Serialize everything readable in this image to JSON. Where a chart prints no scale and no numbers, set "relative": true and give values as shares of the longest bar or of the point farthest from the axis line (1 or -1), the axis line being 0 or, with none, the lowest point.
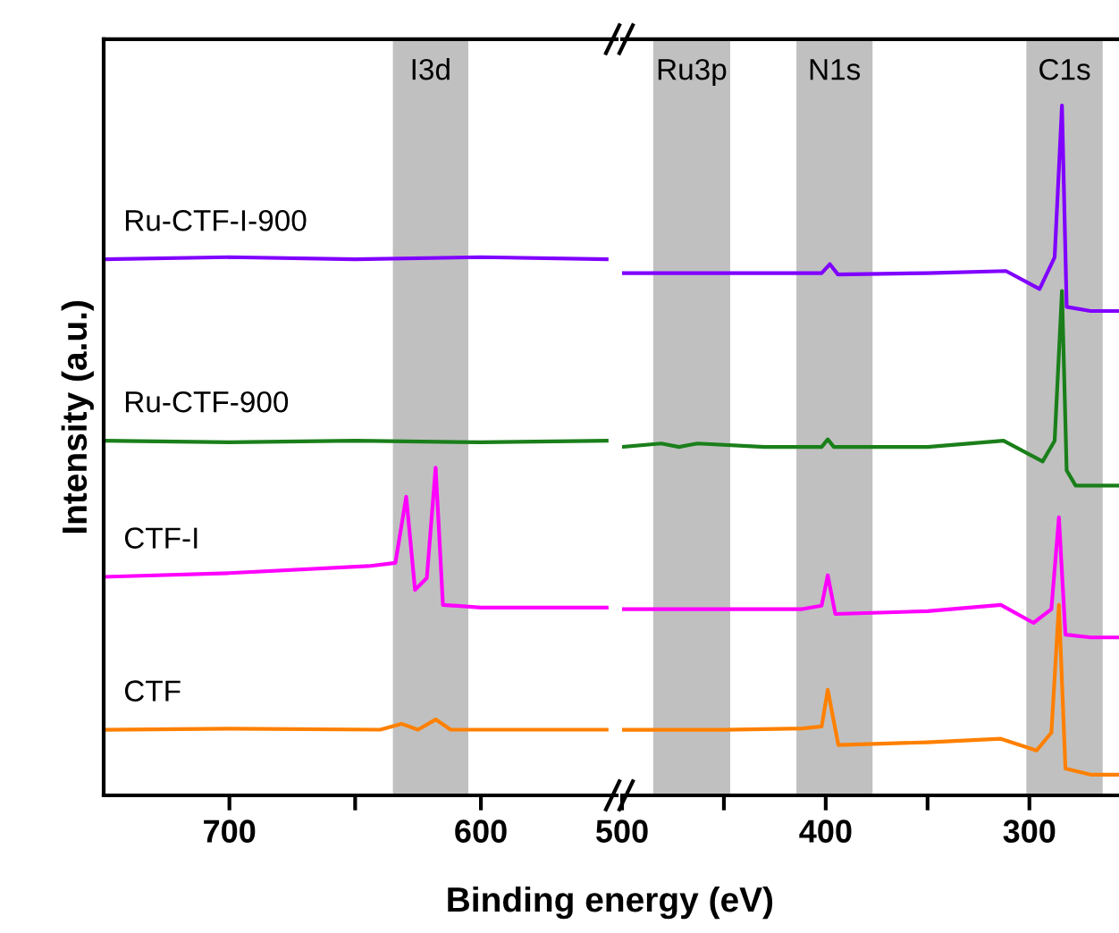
{
  "chart_data": [
    {
      "type": "line",
      "relative": true,
      "ylabel": "Intensity (a.u.)",
      "xlabel": "Binding energy (eV)",
      "xlim": [
        750,
        546
      ],
      "xticks": [
        700,
        {
          "value": 650,
          "label": null
        },
        600
      ],
      "tick_labels": "x",
      "series": [
        {
          "name": "Ru-CTF-I-900",
          "color": "#8000ff",
          "x": [
            750,
            700,
            650,
            600,
            550
          ],
          "values": [
            0.996,
            1,
            0.996,
            1,
            0.996
          ]
        },
        {
          "name": "Ru-CTF-900",
          "color": "#1a7f1a",
          "x": [
            750,
            700,
            650,
            600,
            550
          ],
          "values": [
            0.659,
            0.656,
            0.659,
            0.656,
            0.659
          ]
        },
        {
          "name": "CTF-I",
          "color": "#ff00ff",
          "x": [
            750,
            700,
            644.6,
            634,
            629.7,
            626.2,
            621.5,
            618,
            615.1,
            600,
            550
          ],
          "values": [
            0.406,
            0.413,
            0.426,
            0.432,
            0.555,
            0.382,
            0.404,
            0.609,
            0.354,
            0.349,
            0.349
          ]
        },
        {
          "name": "CTF",
          "color": "#ff8000",
          "x": [
            750,
            700,
            640,
            631.6,
            625,
            618,
            612,
            550
          ],
          "values": [
            0.122,
            0.124,
            0.122,
            0.133,
            0.122,
            0.141,
            0.122,
            0.122
          ]
        }
      ],
      "bands": [
        {
          "axis": "x",
          "from": 635,
          "to": 605,
          "label": "I3d",
          "color": "#c0c0c0"
        }
      ]
    },
    {
      "type": "line",
      "relative": true,
      "xlim": [
        500,
        256
      ],
      "xticks": [
        500,
        {
          "value": 450,
          "label": null
        },
        400,
        {
          "value": 350,
          "label": null
        },
        300
      ],
      "tick_labels": "x",
      "series": [
        {
          "color": "#8000ff",
          "x": [
            500,
            450,
            411.5,
            402,
            398,
            394,
            350,
            311.5,
            295,
            287.6,
            284,
            281.7,
            270,
            256
          ],
          "values": [
            0.757,
            0.757,
            0.757,
            0.757,
            0.77,
            0.755,
            0.757,
            0.76,
            0.734,
            0.78,
            1,
            0.708,
            0.702,
            0.702
          ]
        },
        {
          "color": "#1a7f1a",
          "x": [
            500,
            480.8,
            472,
            463,
            430,
            402,
            399,
            396,
            350,
            312.7,
            293.5,
            287.6,
            284,
            281.7,
            277.3,
            256
          ],
          "values": [
            0.505,
            0.51,
            0.505,
            0.51,
            0.505,
            0.505,
            0.516,
            0.505,
            0.505,
            0.514,
            0.484,
            0.514,
            0.731,
            0.471,
            0.449,
            0.449
          ]
        },
        {
          "color": "#ff00ff",
          "x": [
            500,
            450,
            411.5,
            402,
            399,
            395.3,
            350,
            314,
            298,
            289.2,
            285.5,
            282.3,
            270,
            256
          ],
          "values": [
            0.27,
            0.27,
            0.27,
            0.275,
            0.319,
            0.263,
            0.267,
            0.276,
            0.25,
            0.27,
            0.403,
            0.233,
            0.229,
            0.229
          ]
        },
        {
          "color": "#ff8000",
          "x": [
            500,
            450,
            411.5,
            402,
            399,
            393.8,
            350,
            314,
            296.5,
            289.2,
            285.5,
            282.3,
            270,
            256
          ],
          "values": [
            0.095,
            0.095,
            0.097,
            0.1,
            0.153,
            0.073,
            0.077,
            0.082,
            0.065,
            0.091,
            0.276,
            0.039,
            0.03,
            0.03
          ]
        }
      ],
      "bands": [
        {
          "axis": "x",
          "from": 484.7,
          "to": 446.9,
          "label": "Ru3p",
          "color": "#c0c0c0"
        },
        {
          "axis": "x",
          "from": 414.4,
          "to": 377,
          "label": "N1s",
          "color": "#c0c0c0"
        },
        {
          "axis": "x",
          "from": 301.5,
          "to": 264,
          "label": "C1s",
          "color": "#c0c0c0"
        }
      ]
    }
  ]
}
